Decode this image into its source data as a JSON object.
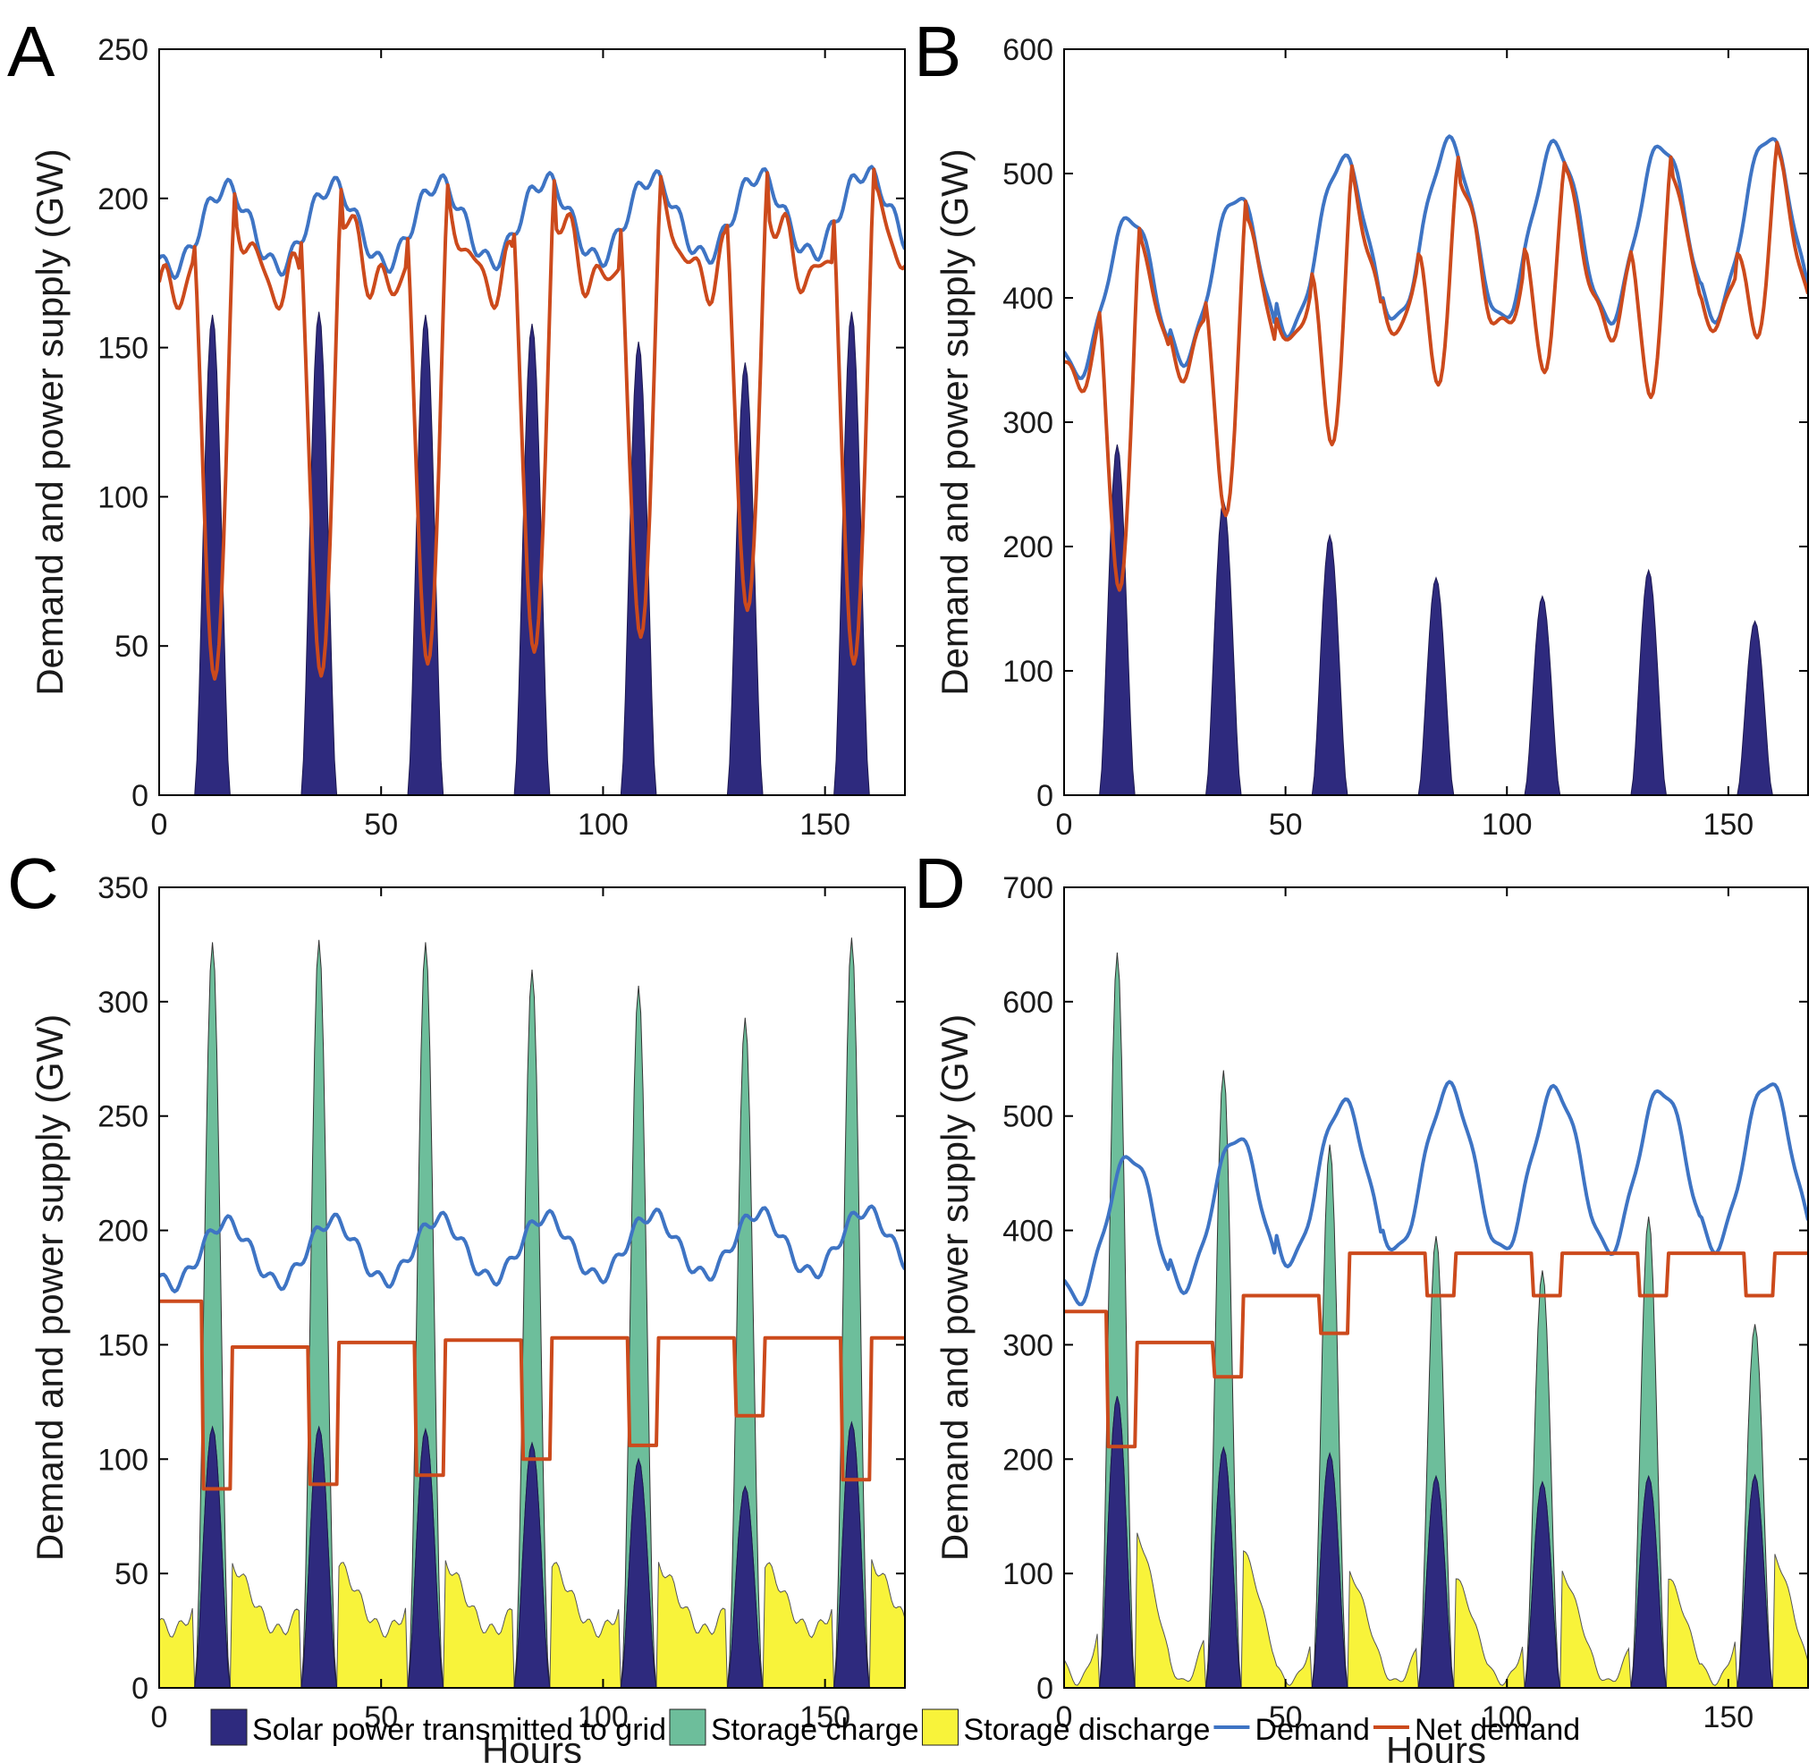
{
  "colors": {
    "solar": "#2e2a7e",
    "charge": "#6dbe9b",
    "discharge": "#f8f33a",
    "demand": "#3e74c4",
    "net_demand": "#cc4a1c"
  },
  "legend": [
    {
      "key": "solar",
      "label": "Solar power transmitted to grid",
      "kind": "patch"
    },
    {
      "key": "charge",
      "label": "Storage charge",
      "kind": "patch"
    },
    {
      "key": "discharge",
      "label": "Storage discharge",
      "kind": "patch"
    },
    {
      "key": "demand",
      "label": "Demand",
      "kind": "line"
    },
    {
      "key": "net_demand",
      "label": "Net demand",
      "kind": "line"
    }
  ],
  "chart_data": [
    {
      "panel": "A",
      "type": "area",
      "ylabel": "Demand and power supply (GW)",
      "xlabel": "",
      "xlim": [
        0,
        168
      ],
      "ylim": [
        0,
        250
      ],
      "xticks": [
        0,
        50,
        100,
        150
      ],
      "yticks": [
        0,
        50,
        100,
        150,
        200,
        250
      ],
      "xtick_labels": [
        "0",
        "50",
        "100",
        "150"
      ],
      "ytick_labels": [
        "0",
        "50",
        "100",
        "150",
        "200",
        "250"
      ],
      "solar_peaks": [
        161,
        162,
        161,
        158,
        152,
        145,
        162
      ],
      "demand_base": 176,
      "demand_peak": 203,
      "demand_trend": 6,
      "net_mode": "dip",
      "net_minima": [
        39,
        40,
        44,
        48,
        53,
        62,
        44
      ]
    },
    {
      "panel": "B",
      "type": "area",
      "ylabel": "Demand and power supply (GW)",
      "xlabel": "",
      "xlim": [
        0,
        168
      ],
      "ylim": [
        0,
        600
      ],
      "xticks": [
        0,
        50,
        100,
        150
      ],
      "yticks": [
        0,
        100,
        200,
        300,
        400,
        500,
        600
      ],
      "xtick_labels": [
        "0",
        "50",
        "100",
        "150"
      ],
      "ytick_labels": [
        "0",
        "100",
        "200",
        "300",
        "400",
        "500",
        "600"
      ],
      "solar_peaks": [
        282,
        237,
        209,
        175,
        160,
        181,
        140
      ],
      "demand_daily_min": [
        338,
        350,
        372,
        382,
        382,
        382,
        385
      ],
      "demand_daily_max": [
        465,
        482,
        512,
        525,
        523,
        523,
        530
      ],
      "net_mode": "dip",
      "net_minima": [
        165,
        225,
        282,
        330,
        340,
        320,
        368
      ]
    },
    {
      "panel": "C",
      "type": "area",
      "ylabel": "Demand and power supply (GW)",
      "xlabel": "Hours",
      "xlim": [
        0,
        168
      ],
      "ylim": [
        0,
        350
      ],
      "xticks": [
        0,
        50,
        100,
        150
      ],
      "yticks": [
        0,
        50,
        100,
        150,
        200,
        250,
        300,
        350
      ],
      "xtick_labels": [
        "0",
        "50",
        "100",
        "150"
      ],
      "ytick_labels": [
        "0",
        "50",
        "100",
        "150",
        "200",
        "250",
        "300",
        "350"
      ],
      "solar_peaks": [
        114,
        114,
        113,
        107,
        100,
        88,
        116
      ],
      "total_peaks": [
        326,
        327,
        326,
        314,
        307,
        293,
        328
      ],
      "discharge_levels": [
        55,
        55,
        56,
        55,
        55,
        55,
        56
      ],
      "discharge_min": 25,
      "demand_base": 176,
      "demand_peak": 203,
      "demand_trend": 6,
      "net_mode": "step",
      "net_day_levels": [
        169,
        149,
        151,
        152,
        153,
        153,
        153,
        153
      ],
      "net_dips": [
        87,
        89,
        93,
        100,
        106,
        119,
        91
      ]
    },
    {
      "panel": "D",
      "type": "area",
      "ylabel": "Demand and power supply (GW)",
      "xlabel": "Hours",
      "xlim": [
        0,
        168
      ],
      "ylim": [
        0,
        700
      ],
      "xticks": [
        0,
        50,
        100,
        150
      ],
      "yticks": [
        0,
        100,
        200,
        300,
        400,
        500,
        600,
        700
      ],
      "xtick_labels": [
        "0",
        "50",
        "100",
        "150"
      ],
      "ytick_labels": [
        "0",
        "100",
        "200",
        "300",
        "400",
        "500",
        "600",
        "700"
      ],
      "solar_peaks": [
        255,
        210,
        205,
        185,
        180,
        185,
        186
      ],
      "total_peaks": [
        643,
        540,
        475,
        395,
        365,
        412,
        318
      ],
      "discharge_levels": [
        140,
        125,
        105,
        100,
        105,
        100,
        120
      ],
      "discharge_min": 5,
      "demand_daily_min": [
        338,
        350,
        372,
        382,
        382,
        382,
        385
      ],
      "demand_daily_max": [
        465,
        482,
        512,
        525,
        523,
        523,
        530
      ],
      "net_mode": "step",
      "net_day_levels": [
        329,
        302,
        343,
        380,
        380,
        380,
        380,
        380
      ],
      "net_dips": [
        211,
        272,
        310,
        343,
        343,
        343,
        343
      ]
    }
  ]
}
